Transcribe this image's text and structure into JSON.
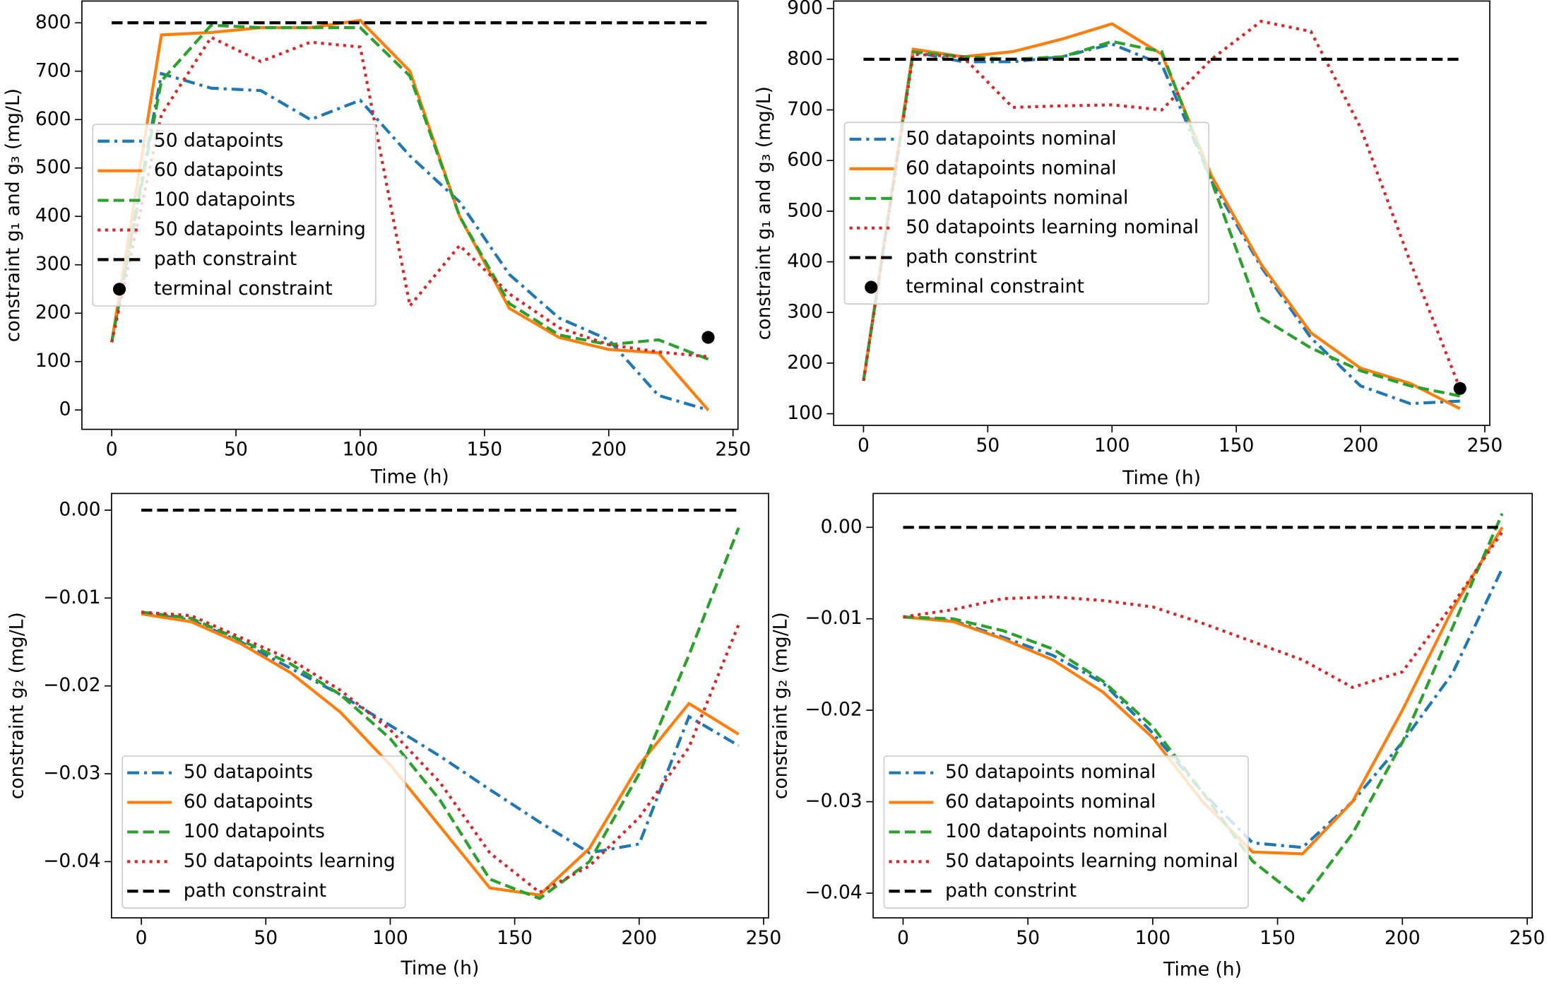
{
  "chart_data": [
    {
      "type": "line",
      "xlabel": "Time (h)",
      "ylabel": "constraint g₁ and g₃ (mg/L)",
      "x": [
        0,
        20,
        40,
        60,
        80,
        100,
        120,
        140,
        160,
        180,
        200,
        220,
        240
      ],
      "xlim": [
        -12,
        252
      ],
      "xticks": [
        0,
        50,
        100,
        150,
        200,
        250
      ],
      "ylim": [
        -40,
        845
      ],
      "yticks": [
        0,
        100,
        200,
        300,
        400,
        500,
        600,
        700,
        800
      ],
      "legend": "center left",
      "series": [
        {
          "name": "50 datapoints",
          "color": "#1f77b4",
          "style": "dashdot",
          "values": [
            140,
            695,
            665,
            660,
            600,
            640,
            525,
            430,
            280,
            190,
            145,
            30,
            0
          ]
        },
        {
          "name": "60 datapoints",
          "color": "#ff7f0e",
          "style": "solid",
          "values": [
            140,
            775,
            780,
            790,
            790,
            805,
            700,
            400,
            210,
            150,
            125,
            118,
            0
          ]
        },
        {
          "name": "100 datapoints",
          "color": "#2ca02c",
          "style": "dashed",
          "values": [
            140,
            680,
            795,
            790,
            790,
            790,
            690,
            400,
            220,
            155,
            135,
            145,
            105
          ]
        },
        {
          "name": "50 datapoints learning",
          "color": "#d62728",
          "style": "dotted",
          "values": [
            140,
            610,
            770,
            720,
            760,
            750,
            215,
            340,
            240,
            170,
            135,
            120,
            110
          ]
        },
        {
          "name": "path constraint",
          "color": "#000000",
          "style": "dashed",
          "x": [
            0,
            240
          ],
          "values": [
            800,
            800
          ]
        },
        {
          "name": "terminal constraint",
          "color": "#000000",
          "style": "marker",
          "x": [
            240
          ],
          "values": [
            150
          ]
        }
      ]
    },
    {
      "type": "line",
      "xlabel": "Time (h)",
      "ylabel": "constraint g₁ and g₃ (mg/L)",
      "x": [
        0,
        20,
        40,
        60,
        80,
        100,
        120,
        140,
        160,
        180,
        200,
        220,
        240
      ],
      "xlim": [
        -12,
        252
      ],
      "xticks": [
        0,
        50,
        100,
        150,
        200,
        250
      ],
      "ylim": [
        77,
        915
      ],
      "yticks": [
        100,
        200,
        300,
        400,
        500,
        600,
        700,
        800,
        900
      ],
      "legend": "center left",
      "series": [
        {
          "name": "50 datapoints nominal",
          "color": "#1f77b4",
          "style": "dashdot",
          "values": [
            165,
            815,
            795,
            795,
            805,
            830,
            790,
            560,
            390,
            250,
            155,
            120,
            125
          ]
        },
        {
          "name": "60 datapoints nominal",
          "color": "#ff7f0e",
          "style": "solid",
          "values": [
            165,
            820,
            805,
            815,
            840,
            870,
            810,
            570,
            395,
            260,
            190,
            160,
            110
          ]
        },
        {
          "name": "100 datapoints nominal",
          "color": "#2ca02c",
          "style": "dashed",
          "values": [
            165,
            815,
            805,
            800,
            805,
            835,
            815,
            560,
            290,
            230,
            185,
            155,
            135
          ]
        },
        {
          "name": "50 datapoints learning nominal",
          "color": "#d62728",
          "style": "dotted",
          "values": [
            165,
            810,
            805,
            705,
            708,
            710,
            700,
            800,
            875,
            855,
            665,
            400,
            150
          ]
        },
        {
          "name": "path constrint",
          "color": "#000000",
          "style": "dashed",
          "x": [
            0,
            240
          ],
          "values": [
            800,
            800
          ]
        },
        {
          "name": "terminal constraint",
          "color": "#000000",
          "style": "marker",
          "x": [
            240
          ],
          "values": [
            150
          ]
        }
      ]
    },
    {
      "type": "line",
      "xlabel": "Time (h)",
      "ylabel": "constraint g₂ (mg/L)",
      "x": [
        0,
        20,
        40,
        60,
        80,
        100,
        120,
        140,
        160,
        180,
        200,
        220,
        240
      ],
      "xlim": [
        -12,
        252
      ],
      "xticks": [
        0,
        50,
        100,
        150,
        200,
        250
      ],
      "ylim": [
        -0.0464,
        0.0019
      ],
      "yticks": [
        {
          "value": 0,
          "label": "0.00"
        },
        {
          "value": -0.01,
          "label": "−0.01"
        },
        {
          "value": -0.02,
          "label": "−0.02"
        },
        {
          "value": -0.03,
          "label": "−0.03"
        },
        {
          "value": -0.04,
          "label": "−0.04"
        }
      ],
      "legend": "lower left",
      "series": [
        {
          "name": "50 datapoints",
          "color": "#1f77b4",
          "style": "dashdot",
          "values": [
            -0.0117,
            -0.0125,
            -0.015,
            -0.018,
            -0.021,
            -0.0245,
            -0.028,
            -0.0318,
            -0.0355,
            -0.039,
            -0.038,
            -0.0235,
            -0.0268
          ]
        },
        {
          "name": "60 datapoints",
          "color": "#ff7f0e",
          "style": "solid",
          "values": [
            -0.0118,
            -0.0127,
            -0.0152,
            -0.0185,
            -0.023,
            -0.029,
            -0.036,
            -0.043,
            -0.0438,
            -0.0385,
            -0.029,
            -0.022,
            -0.0255
          ]
        },
        {
          "name": "100 datapoints",
          "color": "#2ca02c",
          "style": "dashed",
          "values": [
            -0.0116,
            -0.0123,
            -0.0148,
            -0.0175,
            -0.021,
            -0.026,
            -0.033,
            -0.042,
            -0.0442,
            -0.04,
            -0.03,
            -0.0165,
            -0.002
          ]
        },
        {
          "name": "50 datapoints learning",
          "color": "#d62728",
          "style": "dotted",
          "values": [
            -0.0116,
            -0.012,
            -0.0145,
            -0.017,
            -0.0205,
            -0.025,
            -0.031,
            -0.039,
            -0.0435,
            -0.0405,
            -0.035,
            -0.027,
            -0.013
          ]
        },
        {
          "name": "path constraint",
          "color": "#000000",
          "style": "dashed",
          "x": [
            0,
            240
          ],
          "values": [
            0,
            0
          ]
        }
      ]
    },
    {
      "type": "line",
      "xlabel": "Time (h)",
      "ylabel": "constraint g₂ (mg/L)",
      "x": [
        0,
        20,
        40,
        60,
        80,
        100,
        120,
        140,
        160,
        180,
        200,
        220,
        240
      ],
      "xlim": [
        -12,
        252
      ],
      "xticks": [
        0,
        50,
        100,
        150,
        200,
        250
      ],
      "ylim": [
        -0.0427,
        0.0037
      ],
      "yticks": [
        {
          "value": 0,
          "label": "0.00"
        },
        {
          "value": -0.01,
          "label": "−0.01"
        },
        {
          "value": -0.02,
          "label": "−0.02"
        },
        {
          "value": -0.03,
          "label": "−0.03"
        },
        {
          "value": -0.04,
          "label": "−0.04"
        }
      ],
      "legend": "lower left",
      "series": [
        {
          "name": "50 datapoints nominal",
          "color": "#1f77b4",
          "style": "dashdot",
          "values": [
            -0.0098,
            -0.0102,
            -0.012,
            -0.014,
            -0.017,
            -0.0225,
            -0.029,
            -0.0345,
            -0.035,
            -0.03,
            -0.0235,
            -0.016,
            -0.0045
          ]
        },
        {
          "name": "60 datapoints nominal",
          "color": "#ff7f0e",
          "style": "solid",
          "values": [
            -0.0098,
            -0.0103,
            -0.0122,
            -0.0145,
            -0.018,
            -0.023,
            -0.03,
            -0.0355,
            -0.0357,
            -0.03,
            -0.02,
            -0.009,
            0
          ]
        },
        {
          "name": "100 datapoints nominal",
          "color": "#2ca02c",
          "style": "dashed",
          "values": [
            -0.0098,
            -0.01,
            -0.0113,
            -0.0133,
            -0.0168,
            -0.0218,
            -0.029,
            -0.0365,
            -0.0408,
            -0.0335,
            -0.0235,
            -0.011,
            0.0015
          ]
        },
        {
          "name": "50 datapoints learning nominal",
          "color": "#d62728",
          "style": "dotted",
          "values": [
            -0.0098,
            -0.009,
            -0.0078,
            -0.0076,
            -0.008,
            -0.0087,
            -0.0105,
            -0.0125,
            -0.0145,
            -0.0175,
            -0.0158,
            -0.0085,
            -0.0005
          ]
        },
        {
          "name": "path constrint",
          "color": "#000000",
          "style": "dashed",
          "x": [
            0,
            240
          ],
          "values": [
            0,
            0
          ]
        }
      ]
    }
  ]
}
